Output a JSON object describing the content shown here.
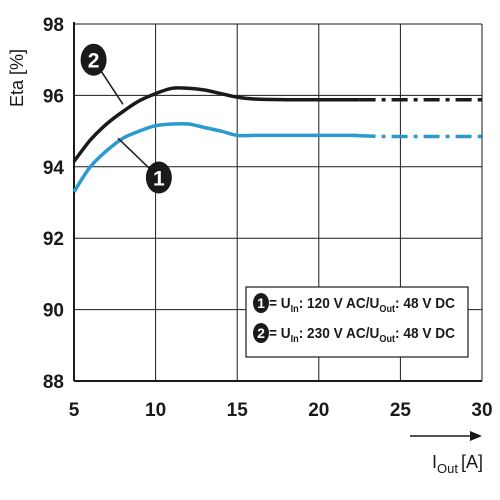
{
  "chart_data": {
    "type": "line",
    "xlabel": "I",
    "xlabel_sub": "Out",
    "xlabel_unit": "[A]",
    "ylabel": "Eta [%]",
    "xlim": [
      5,
      30
    ],
    "ylim": [
      88,
      98
    ],
    "x_ticks": [
      5,
      10,
      15,
      20,
      25,
      30
    ],
    "y_ticks": [
      88,
      90,
      92,
      94,
      96,
      98
    ],
    "grid": true,
    "series": [
      {
        "id": "2",
        "color": "#1a1a1a",
        "solid_until": 22.5,
        "x": [
          5,
          6,
          7,
          8,
          9,
          10,
          11,
          12,
          13,
          14,
          15,
          16,
          18,
          20,
          22,
          24,
          26,
          28,
          30
        ],
        "y": [
          94.15,
          94.75,
          95.2,
          95.55,
          95.85,
          96.05,
          96.2,
          96.2,
          96.15,
          96.05,
          95.95,
          95.9,
          95.88,
          95.88,
          95.88,
          95.88,
          95.88,
          95.88,
          95.88
        ]
      },
      {
        "id": "1",
        "color": "#2a9bd0",
        "solid_until": 22.5,
        "x": [
          5,
          6,
          7,
          8,
          9,
          10,
          11,
          12,
          13,
          14,
          15,
          16,
          18,
          20,
          22,
          24,
          26,
          28,
          30
        ],
        "y": [
          93.3,
          94.0,
          94.45,
          94.8,
          95.0,
          95.15,
          95.2,
          95.2,
          95.1,
          95.0,
          94.88,
          94.88,
          94.88,
          94.88,
          94.88,
          94.85,
          94.85,
          94.85,
          94.85
        ]
      }
    ],
    "callouts": [
      {
        "id": "2",
        "x": 8.0,
        "y": 95.75,
        "badge_x": 6.2,
        "badge_y": 97.0
      },
      {
        "id": "1",
        "x": 7.7,
        "y": 94.8,
        "badge_x": 10.2,
        "badge_y": 93.7
      }
    ],
    "legend": {
      "placement": "bottom-right",
      "entries": [
        {
          "id": "1",
          "prefix": " = U",
          "in_sub": "In",
          "mid": ": 120 V AC/U",
          "out_sub": "Out",
          "suffix": ": 48 V DC"
        },
        {
          "id": "2",
          "prefix": " = U",
          "in_sub": "In",
          "mid": ": 230 V AC/U",
          "out_sub": "Out",
          "suffix": ": 48 V DC"
        }
      ]
    }
  }
}
